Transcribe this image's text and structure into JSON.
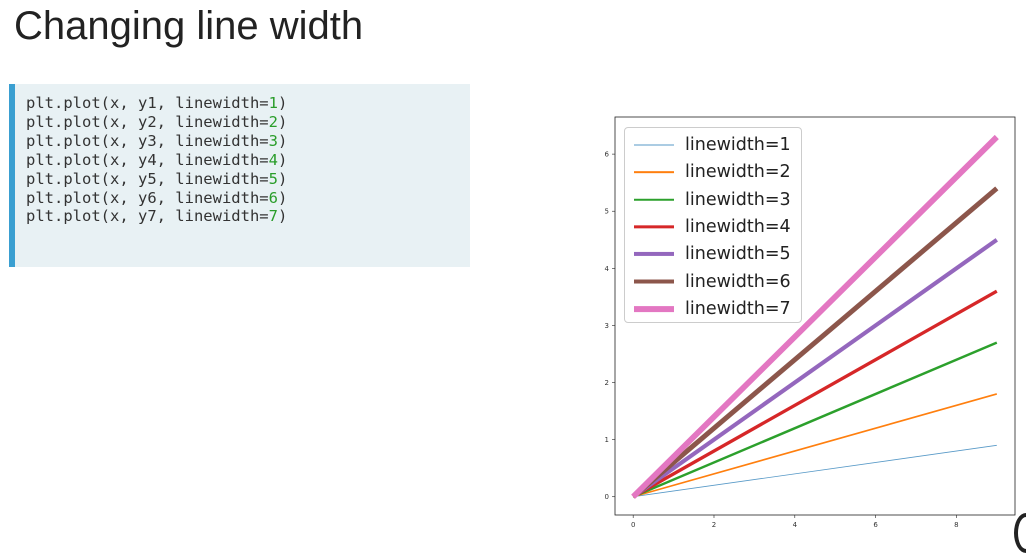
{
  "title": "Changing line width",
  "code": {
    "lines": [
      {
        "prefix": "plt.plot(x, y1, linewidth=",
        "num": "1",
        "suffix": ")"
      },
      {
        "prefix": "plt.plot(x, y2, linewidth=",
        "num": "2",
        "suffix": ")"
      },
      {
        "prefix": "plt.plot(x, y3, linewidth=",
        "num": "3",
        "suffix": ")"
      },
      {
        "prefix": "plt.plot(x, y4, linewidth=",
        "num": "4",
        "suffix": ")"
      },
      {
        "prefix": "plt.plot(x, y5, linewidth=",
        "num": "5",
        "suffix": ")"
      },
      {
        "prefix": "plt.plot(x, y6, linewidth=",
        "num": "6",
        "suffix": ")"
      },
      {
        "prefix": "plt.plot(x, y7, linewidth=",
        "num": "7",
        "suffix": ")"
      }
    ]
  },
  "chart_data": {
    "type": "line",
    "title": "",
    "xlabel": "",
    "ylabel": "",
    "xlim": [
      -0.45,
      9.45
    ],
    "ylim": [
      -0.32,
      6.65
    ],
    "x_ticks": [
      0,
      2,
      4,
      6,
      8
    ],
    "y_ticks": [
      0,
      1,
      2,
      3,
      4,
      5,
      6
    ],
    "x": [
      0,
      9
    ],
    "grid": false,
    "legend_position": "upper-left",
    "series": [
      {
        "name": "linewidth=1",
        "linewidth": 1,
        "color": "#1f77b4",
        "values": [
          0,
          0.9
        ]
      },
      {
        "name": "linewidth=2",
        "linewidth": 2,
        "color": "#ff7f0e",
        "values": [
          0,
          1.8
        ]
      },
      {
        "name": "linewidth=3",
        "linewidth": 3,
        "color": "#2ca02c",
        "values": [
          0,
          2.7
        ]
      },
      {
        "name": "linewidth=4",
        "linewidth": 4,
        "color": "#d62728",
        "values": [
          0,
          3.6
        ]
      },
      {
        "name": "linewidth=5",
        "linewidth": 5,
        "color": "#9467bd",
        "values": [
          0,
          4.5
        ]
      },
      {
        "name": "linewidth=6",
        "linewidth": 6,
        "color": "#8c564b",
        "values": [
          0,
          5.4
        ]
      },
      {
        "name": "linewidth=7",
        "linewidth": 7,
        "color": "#e377c2",
        "values": [
          0,
          6.3
        ]
      }
    ]
  }
}
